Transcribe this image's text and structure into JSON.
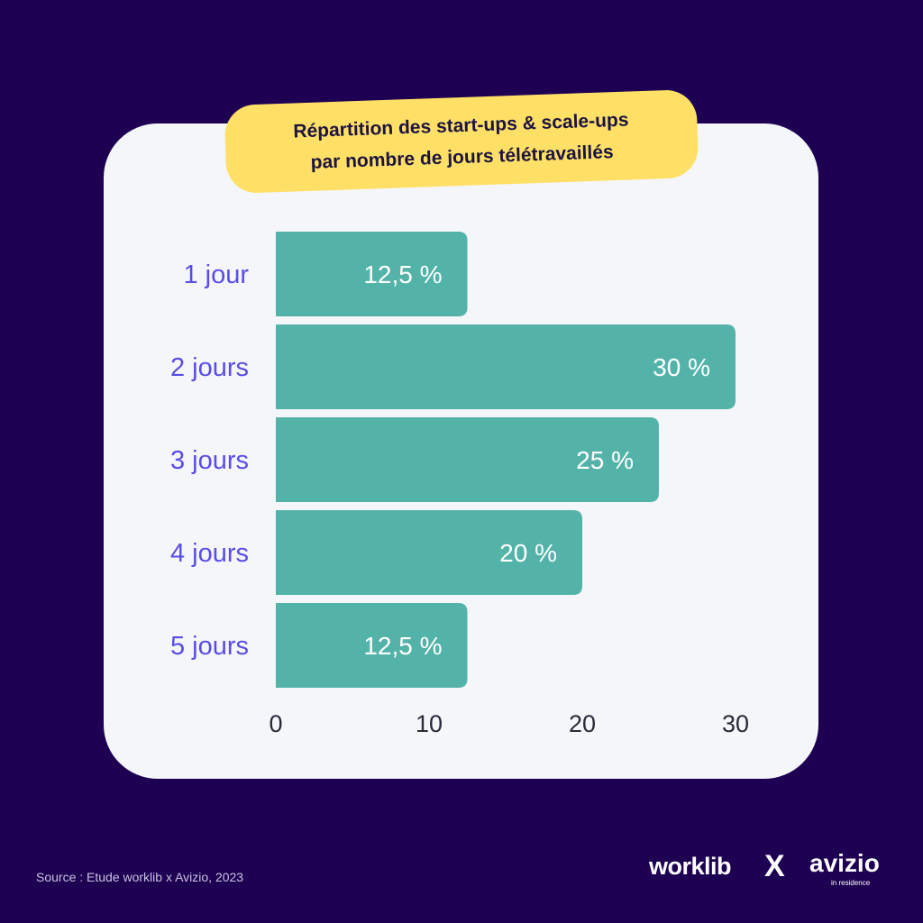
{
  "title": {
    "line1": "Répartition des start-ups & scale-ups",
    "line2": "par nombre de jours télétravaillés"
  },
  "chart_data": {
    "type": "bar",
    "orientation": "horizontal",
    "categories": [
      "1 jour",
      "2 jours",
      "3 jours",
      "4 jours",
      "5 jours"
    ],
    "values": [
      12.5,
      30,
      25,
      20,
      12.5
    ],
    "value_labels": [
      "12,5 %",
      "30 %",
      "25 %",
      "20 %",
      "12,5 %"
    ],
    "xlim": [
      0,
      30
    ],
    "x_ticks": [
      0,
      10,
      20,
      30
    ],
    "grid": false,
    "colors": {
      "bar": "#54b3a9",
      "category_label": "#5a4de6"
    }
  },
  "footer": {
    "source": "Source : Etude worklib x Avizio, 2023",
    "logo_left": "worklib",
    "logo_separator": "X",
    "logo_right": "avizio",
    "logo_right_sub": "in residence"
  },
  "colors": {
    "background": "#1d0052",
    "card": "#f5f6fa",
    "title_badge": "#ffe066"
  }
}
